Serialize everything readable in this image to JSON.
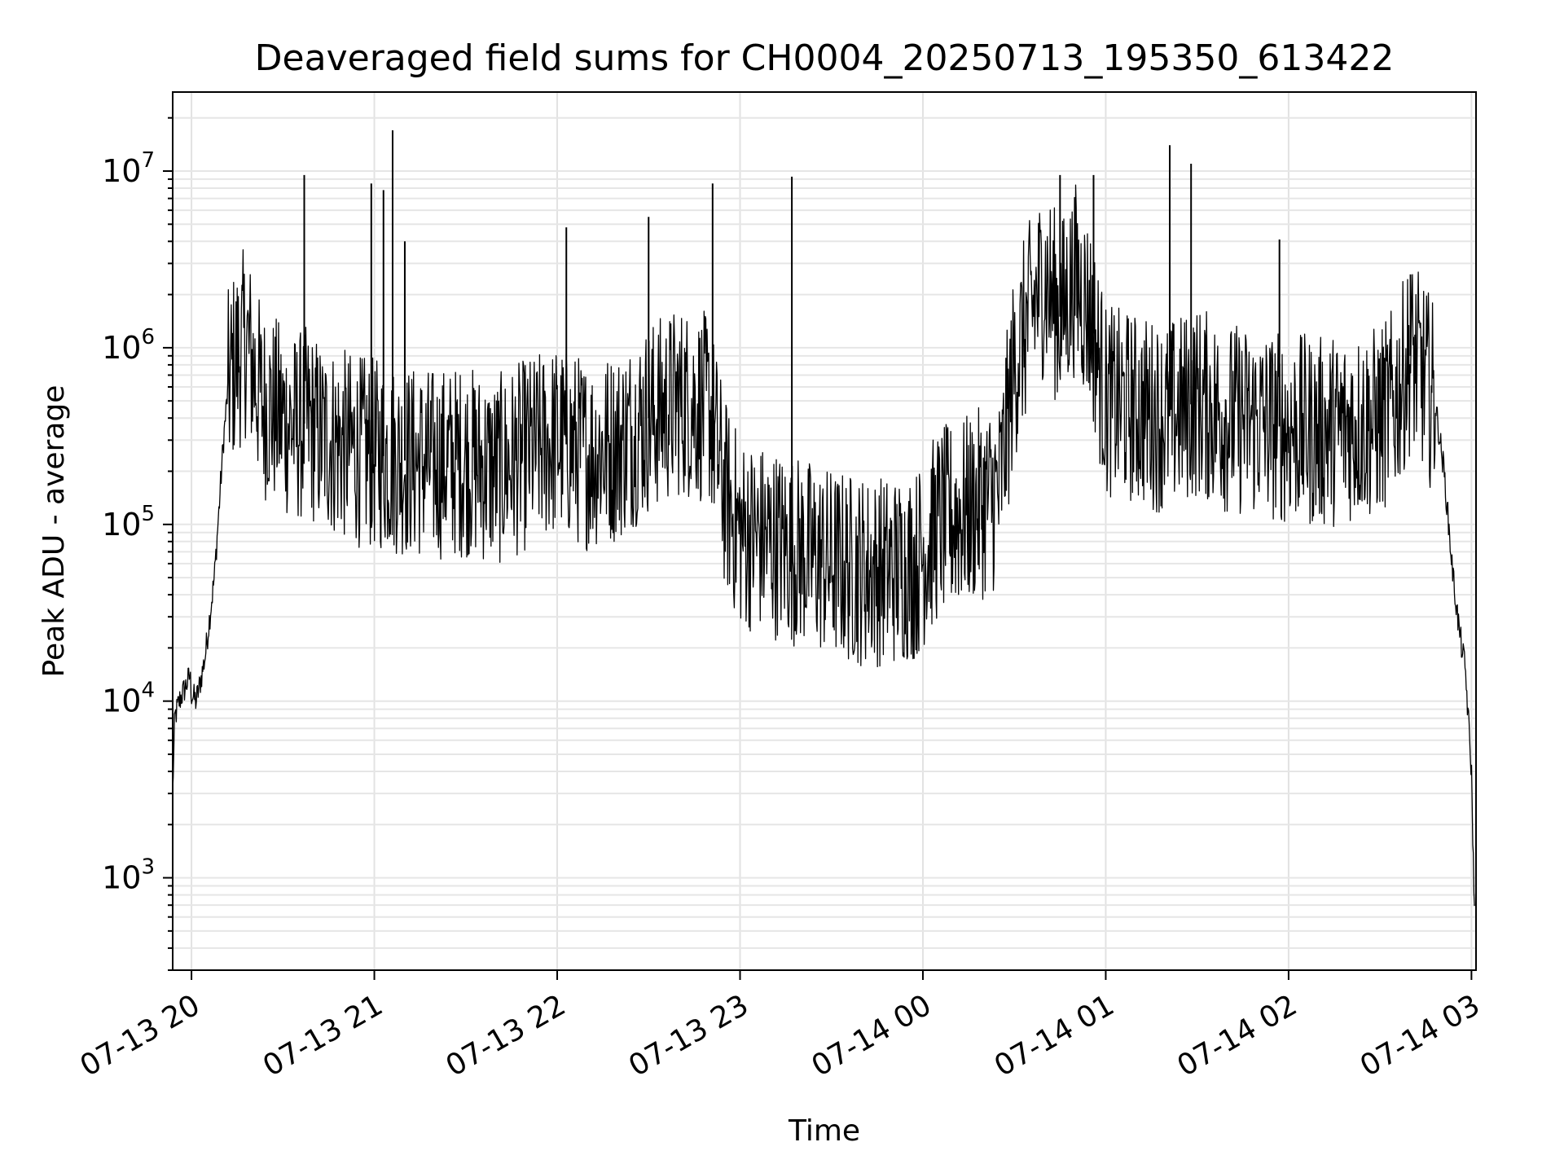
{
  "chart_data": {
    "type": "line",
    "title": "Deaveraged field sums for CH0004_20250713_195350_613422",
    "xlabel": "Time",
    "ylabel": "Peak ADU - average",
    "yscale": "log",
    "grid": true,
    "ylim": [
      300,
      28000000
    ],
    "xlim": [
      "2025-07-13T19:53:50",
      "2025-07-14T03:01:30"
    ],
    "x_ticks": [
      {
        "label": "07-13 20",
        "t": "2025-07-13T20:00:00"
      },
      {
        "label": "07-13 21",
        "t": "2025-07-13T21:00:00"
      },
      {
        "label": "07-13 22",
        "t": "2025-07-13T22:00:00"
      },
      {
        "label": "07-13 23",
        "t": "2025-07-13T23:00:00"
      },
      {
        "label": "07-14 00",
        "t": "2025-07-14T00:00:00"
      },
      {
        "label": "07-14 01",
        "t": "2025-07-14T01:00:00"
      },
      {
        "label": "07-14 02",
        "t": "2025-07-14T02:00:00"
      },
      {
        "label": "07-14 03",
        "t": "2025-07-14T03:00:00"
      }
    ],
    "y_ticks": [
      {
        "base": "10",
        "exp": "3",
        "value": 1000
      },
      {
        "base": "10",
        "exp": "4",
        "value": 10000
      },
      {
        "base": "10",
        "exp": "5",
        "value": 100000
      },
      {
        "base": "10",
        "exp": "6",
        "value": 1000000
      },
      {
        "base": "10",
        "exp": "7",
        "value": 10000000
      }
    ],
    "series": [
      {
        "color": "#000000",
        "points": [
          [
            "2025-07-13T19:53:50",
            3000
          ],
          [
            "2025-07-13T19:54:30",
            8000
          ],
          [
            "2025-07-13T19:56:00",
            10000
          ],
          [
            "2025-07-13T19:58:00",
            12000
          ],
          [
            "2025-07-13T19:59:30",
            14000
          ],
          [
            "2025-07-13T20:00:00",
            11000
          ],
          [
            "2025-07-13T20:01:30",
            10000
          ],
          [
            "2025-07-13T20:03:00",
            13000
          ],
          [
            "2025-07-13T20:04:30",
            18000
          ],
          [
            "2025-07-13T20:06:00",
            30000
          ],
          [
            "2025-07-13T20:07:30",
            50000
          ],
          [
            "2025-07-13T20:09:00",
            120000
          ],
          [
            "2025-07-13T20:10:30",
            300000
          ],
          [
            "2025-07-13T20:12:00",
            600000
          ],
          [
            "2025-07-13T20:14:00",
            800000
          ],
          [
            "2025-07-13T20:16:00",
            950000
          ],
          [
            "2025-07-13T20:18:00",
            1100000
          ],
          [
            "2025-07-13T20:20:00",
            800000
          ],
          [
            "2025-07-13T20:23:00",
            500000
          ],
          [
            "2025-07-13T20:26:00",
            450000
          ],
          [
            "2025-07-13T20:30:00",
            400000
          ],
          [
            "2025-07-13T20:34:00",
            350000
          ],
          [
            "2025-07-13T20:38:00",
            380000
          ],
          [
            "2025-07-13T20:42:00",
            320000
          ],
          [
            "2025-07-13T20:46:00",
            300000
          ],
          [
            "2025-07-13T20:50:00",
            280000
          ],
          [
            "2025-07-13T20:55:00",
            260000
          ],
          [
            "2025-07-13T21:00:00",
            250000
          ],
          [
            "2025-07-13T21:10:00",
            230000
          ],
          [
            "2025-07-13T21:20:00",
            220000
          ],
          [
            "2025-07-13T21:30:00",
            230000
          ],
          [
            "2025-07-13T21:40:00",
            200000
          ],
          [
            "2025-07-13T21:50:00",
            250000
          ],
          [
            "2025-07-13T22:00:00",
            300000
          ],
          [
            "2025-07-13T22:10:00",
            250000
          ],
          [
            "2025-07-13T22:20:00",
            280000
          ],
          [
            "2025-07-13T22:30:00",
            400000
          ],
          [
            "2025-07-13T22:40:00",
            500000
          ],
          [
            "2025-07-13T22:50:00",
            450000
          ],
          [
            "2025-07-13T22:55:00",
            150000
          ],
          [
            "2025-07-13T23:00:00",
            90000
          ],
          [
            "2025-07-13T23:10:00",
            80000
          ],
          [
            "2025-07-13T23:20:00",
            70000
          ],
          [
            "2025-07-13T23:30:00",
            60000
          ],
          [
            "2025-07-13T23:40:00",
            55000
          ],
          [
            "2025-07-13T23:50:00",
            55000
          ],
          [
            "2025-07-13T23:58:00",
            60000
          ],
          [
            "2025-07-14T00:05:00",
            100000
          ],
          [
            "2025-07-14T00:15:00",
            120000
          ],
          [
            "2025-07-14T00:25:00",
            150000
          ],
          [
            "2025-07-14T00:30:00",
            800000
          ],
          [
            "2025-07-14T00:35:00",
            1500000
          ],
          [
            "2025-07-14T00:40:00",
            2500000
          ],
          [
            "2025-07-14T00:45:00",
            1500000
          ],
          [
            "2025-07-14T00:50:00",
            2500000
          ],
          [
            "2025-07-14T00:55:00",
            1500000
          ],
          [
            "2025-07-14T01:00:00",
            500000
          ],
          [
            "2025-07-14T01:10:00",
            450000
          ],
          [
            "2025-07-14T01:20:00",
            400000
          ],
          [
            "2025-07-14T01:30:00",
            500000
          ],
          [
            "2025-07-14T01:40:00",
            400000
          ],
          [
            "2025-07-14T01:50:00",
            380000
          ],
          [
            "2025-07-14T02:00:00",
            350000
          ],
          [
            "2025-07-14T02:10:00",
            330000
          ],
          [
            "2025-07-14T02:20:00",
            360000
          ],
          [
            "2025-07-14T02:30:00",
            380000
          ],
          [
            "2025-07-14T02:35:00",
            500000
          ],
          [
            "2025-07-14T02:40:00",
            900000
          ],
          [
            "2025-07-14T02:44:00",
            700000
          ],
          [
            "2025-07-14T02:48:00",
            500000
          ],
          [
            "2025-07-14T02:51:00",
            200000
          ],
          [
            "2025-07-14T02:54:00",
            50000
          ],
          [
            "2025-07-14T02:56:00",
            25000
          ],
          [
            "2025-07-14T02:58:00",
            15000
          ],
          [
            "2025-07-14T03:00:00",
            4000
          ],
          [
            "2025-07-14T03:01:00",
            600
          ]
        ]
      }
    ],
    "spikes": [
      [
        "2025-07-13T20:37:00",
        9500000
      ],
      [
        "2025-07-13T20:59:00",
        8500000
      ],
      [
        "2025-07-13T21:03:00",
        7800000
      ],
      [
        "2025-07-13T21:06:00",
        17000000
      ],
      [
        "2025-07-13T21:10:00",
        4000000
      ],
      [
        "2025-07-13T22:03:00",
        4800000
      ],
      [
        "2025-07-13T22:30:00",
        5500000
      ],
      [
        "2025-07-13T22:51:00",
        8500000
      ],
      [
        "2025-07-13T23:17:00",
        9300000
      ],
      [
        "2025-07-14T00:45:00",
        9500000
      ],
      [
        "2025-07-14T00:56:00",
        9500000
      ],
      [
        "2025-07-14T01:21:00",
        14000000
      ],
      [
        "2025-07-14T01:28:00",
        11000000
      ],
      [
        "2025-07-14T01:57:00",
        4100000
      ],
      [
        "2025-07-14T02:40:00",
        2600000
      ]
    ]
  }
}
